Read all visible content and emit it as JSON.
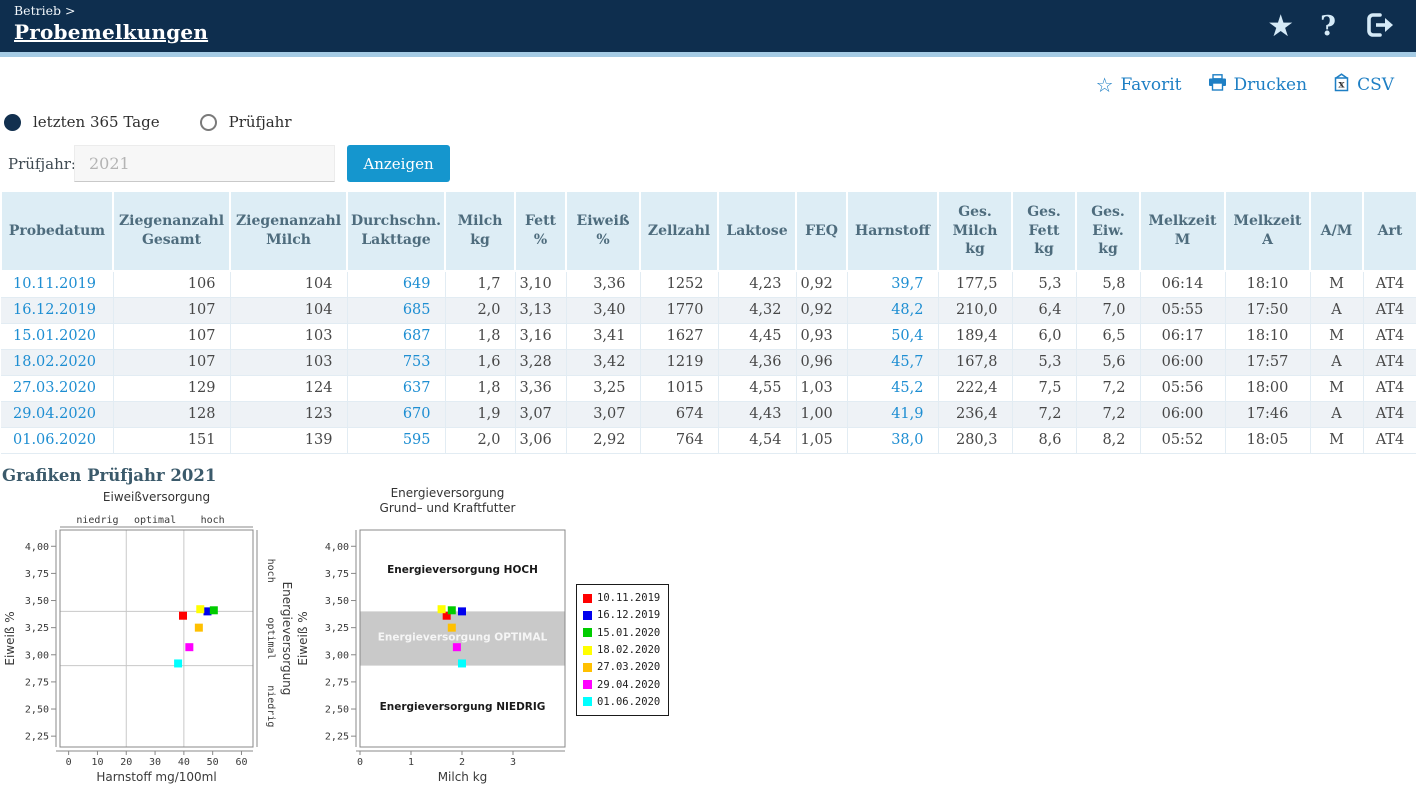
{
  "header": {
    "breadcrumb": "Betrieb >",
    "title": "Probemelkungen",
    "icons": [
      "favorite-star-icon",
      "help-icon",
      "logout-icon"
    ]
  },
  "toolbar": {
    "favorit_label": "Favorit",
    "drucken_label": "Drucken",
    "csv_label": "CSV",
    "accent_color": "#1e7fc4"
  },
  "filters": {
    "radio_last365_label": "letzten 365 Tage",
    "radio_last365_selected": true,
    "radio_pruefjahr_label": "Prüfjahr",
    "radio_pruefjahr_selected": false,
    "pruefjahr_field_label": "Prüfjahr:",
    "pruefjahr_placeholder": "2021",
    "pruefjahr_value": "",
    "anzeigen_button_label": "Anzeigen",
    "button_color": "#1596ce"
  },
  "table": {
    "columns": [
      "Probedatum",
      "Ziegenanzahl\nGesamt",
      "Ziegenanzahl\nMilch",
      "Durchschn.\nLakttage",
      "Milch\nkg",
      "Fett\n%",
      "Eiweiß\n%",
      "Zellzahl",
      "Laktose",
      "FEQ",
      "Harnstoff",
      "Ges.\nMilch\nkg",
      "Ges.\nFett\nkg",
      "Ges.\nEiw.\nkg",
      "Melkzeit\nM",
      "Melkzeit\nA",
      "A/M",
      "Art"
    ],
    "link_columns": [
      0,
      3,
      10
    ],
    "rows": [
      [
        "10.11.2019",
        "106",
        "104",
        "649",
        "1,7",
        "3,10",
        "3,36",
        "1252",
        "4,23",
        "0,92",
        "39,7",
        "177,5",
        "5,3",
        "5,8",
        "06:14",
        "18:10",
        "M",
        "AT4"
      ],
      [
        "16.12.2019",
        "107",
        "104",
        "685",
        "2,0",
        "3,13",
        "3,40",
        "1770",
        "4,32",
        "0,92",
        "48,2",
        "210,0",
        "6,4",
        "7,0",
        "05:55",
        "17:50",
        "A",
        "AT4"
      ],
      [
        "15.01.2020",
        "107",
        "103",
        "687",
        "1,8",
        "3,16",
        "3,41",
        "1627",
        "4,45",
        "0,93",
        "50,4",
        "189,4",
        "6,0",
        "6,5",
        "06:17",
        "18:10",
        "M",
        "AT4"
      ],
      [
        "18.02.2020",
        "107",
        "103",
        "753",
        "1,6",
        "3,28",
        "3,42",
        "1219",
        "4,36",
        "0,96",
        "45,7",
        "167,8",
        "5,3",
        "5,6",
        "06:00",
        "17:57",
        "A",
        "AT4"
      ],
      [
        "27.03.2020",
        "129",
        "124",
        "637",
        "1,8",
        "3,36",
        "3,25",
        "1015",
        "4,55",
        "1,03",
        "45,2",
        "222,4",
        "7,5",
        "7,2",
        "05:56",
        "18:00",
        "M",
        "AT4"
      ],
      [
        "29.04.2020",
        "128",
        "123",
        "670",
        "1,9",
        "3,07",
        "3,07",
        "674",
        "4,43",
        "1,00",
        "41,9",
        "236,4",
        "7,2",
        "7,2",
        "06:00",
        "17:46",
        "A",
        "AT4"
      ],
      [
        "01.06.2020",
        "151",
        "139",
        "595",
        "2,0",
        "3,06",
        "2,92",
        "764",
        "4,54",
        "1,05",
        "38,0",
        "280,3",
        "8,6",
        "8,2",
        "05:52",
        "18:05",
        "M",
        "AT4"
      ]
    ]
  },
  "charts_heading": "Grafiken Prüfjahr 2021",
  "chart_data": [
    {
      "type": "scatter",
      "title": "Eiweißversorgung",
      "xlabel": "Harnstoff mg/100ml",
      "ylabel": "Eiweiß %",
      "xlim": [
        0,
        60
      ],
      "ylim": [
        2.25,
        4.0
      ],
      "xticks": [
        0,
        10,
        20,
        30,
        40,
        50,
        60
      ],
      "yticks": [
        2.25,
        2.5,
        2.75,
        3.0,
        3.25,
        3.5,
        3.75,
        4.0
      ],
      "vlines": [
        20,
        40
      ],
      "hlines": [
        2.9,
        3.4
      ],
      "top_zone_labels": [
        "niedrig",
        "optimal",
        "hoch"
      ],
      "top_zone_centers": [
        10,
        30,
        50
      ],
      "right_axis_label": "Energieversorgung",
      "right_zone_labels": [
        "hoch",
        "optimal",
        "niedrig"
      ],
      "grid_color": "#c8c8c8",
      "series": [
        {
          "name": "10.11.2019",
          "color": "#ff0000",
          "x": 39.7,
          "y": 3.36
        },
        {
          "name": "16.12.2019",
          "color": "#0000ee",
          "x": 48.2,
          "y": 3.4
        },
        {
          "name": "15.01.2020",
          "color": "#00cc00",
          "x": 50.4,
          "y": 3.41
        },
        {
          "name": "18.02.2020",
          "color": "#ffff00",
          "x": 45.7,
          "y": 3.42
        },
        {
          "name": "27.03.2020",
          "color": "#ffc000",
          "x": 45.2,
          "y": 3.25
        },
        {
          "name": "29.04.2020",
          "color": "#ff00ff",
          "x": 41.9,
          "y": 3.07
        },
        {
          "name": "01.06.2020",
          "color": "#00ffff",
          "x": 38.0,
          "y": 2.92
        }
      ]
    },
    {
      "type": "scatter",
      "title": "Energieversorgung",
      "subtitle": "Grund– und Kraftfutter",
      "xlabel": "Milch kg",
      "ylabel": "Eiweiß %",
      "xlim": [
        0,
        4
      ],
      "ylim": [
        2.25,
        4.0
      ],
      "xticks": [
        0,
        1,
        2,
        3
      ],
      "yticks": [
        2.25,
        2.5,
        2.75,
        3.0,
        3.25,
        3.5,
        3.75,
        4.0
      ],
      "band": {
        "from": 2.9,
        "to": 3.4,
        "color": "#c9c9c9"
      },
      "zone_labels": [
        {
          "text": "Energieversorgung HOCH",
          "y": 3.78,
          "color": "#1a1a1a"
        },
        {
          "text": "Energieversorgung OPTIMAL",
          "y": 3.16,
          "color": "#f5f5f5"
        },
        {
          "text": "Energieversorgung NIEDRIG",
          "y": 2.52,
          "color": "#1a1a1a"
        }
      ],
      "series": [
        {
          "name": "10.11.2019",
          "color": "#ff0000",
          "x": 1.7,
          "y": 3.36
        },
        {
          "name": "16.12.2019",
          "color": "#0000ee",
          "x": 2.0,
          "y": 3.4
        },
        {
          "name": "15.01.2020",
          "color": "#00cc00",
          "x": 1.8,
          "y": 3.41
        },
        {
          "name": "18.02.2020",
          "color": "#ffff00",
          "x": 1.6,
          "y": 3.42
        },
        {
          "name": "27.03.2020",
          "color": "#ffc000",
          "x": 1.8,
          "y": 3.25
        },
        {
          "name": "29.04.2020",
          "color": "#ff00ff",
          "x": 1.9,
          "y": 3.07
        },
        {
          "name": "01.06.2020",
          "color": "#00ffff",
          "x": 2.0,
          "y": 2.92
        }
      ]
    }
  ],
  "legend": {
    "entries": [
      {
        "label": "10.11.2019",
        "color": "#ff0000"
      },
      {
        "label": "16.12.2019",
        "color": "#0000ee"
      },
      {
        "label": "15.01.2020",
        "color": "#00cc00"
      },
      {
        "label": "18.02.2020",
        "color": "#ffff00"
      },
      {
        "label": "27.03.2020",
        "color": "#ffc000"
      },
      {
        "label": "29.04.2020",
        "color": "#ff00ff"
      },
      {
        "label": "01.06.2020",
        "color": "#00ffff"
      }
    ]
  }
}
